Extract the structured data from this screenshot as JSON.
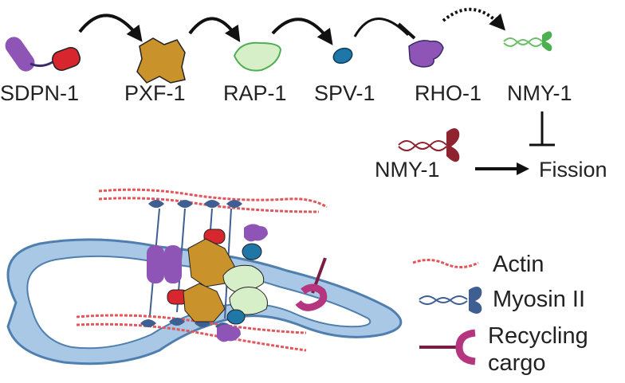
{
  "pathway": {
    "proteins": [
      {
        "label": "SDPN-1",
        "color": "#8f55b6"
      },
      {
        "label": "PXF-1",
        "color": "#c9922b"
      },
      {
        "label": "RAP-1",
        "color": "#d7efc8"
      },
      {
        "label": "SPV-1",
        "color": "#1f77a8"
      },
      {
        "label": "RHO-1",
        "color": "#8f55b6"
      },
      {
        "label": "NMY-1",
        "color": "#4caf50"
      }
    ],
    "secondary": {
      "myosin_label": "NMY-1",
      "outcome_label": "Fission"
    }
  },
  "legend": {
    "actin": "Actin",
    "myosin": "Myosin II",
    "cargo_line1": "Recycling",
    "cargo_line2": "cargo"
  },
  "colors": {
    "actin": "#e0575b",
    "myosin_head": "#3f5f93",
    "membrane_fill": "#a9c8e6",
    "membrane_stroke": "#4f7fae",
    "cargo": "#b5357f",
    "cargo_stem": "#7a1c45",
    "myosin_secondary": "#8e2430",
    "arrow": "#111111"
  }
}
